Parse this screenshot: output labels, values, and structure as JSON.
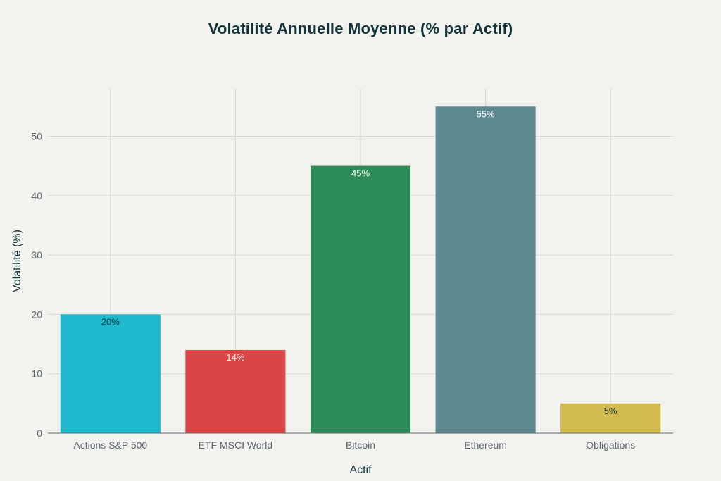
{
  "chart_data": {
    "type": "bar",
    "title": "Volatilité Annuelle Moyenne (% par Actif)",
    "xlabel": "Actif",
    "ylabel": "Volatilité (%)",
    "categories": [
      "Actions S&P 500",
      "ETF MSCI World",
      "Bitcoin",
      "Ethereum",
      "Obligations"
    ],
    "values": [
      20,
      14,
      45,
      55,
      5
    ],
    "data_labels": [
      "20%",
      "14%",
      "45%",
      "55%",
      "5%"
    ],
    "colors": [
      "#1fb8cd",
      "#db4545",
      "#2e8b57",
      "#5d878f",
      "#d2ba4c"
    ],
    "label_colors": [
      "#13343b",
      "#ffffff",
      "#ffffff",
      "#ffffff",
      "#13343b"
    ],
    "ylim": [
      0,
      58
    ],
    "yticks": [
      0,
      10,
      20,
      30,
      40,
      50
    ],
    "grid": true,
    "legend": "none"
  }
}
